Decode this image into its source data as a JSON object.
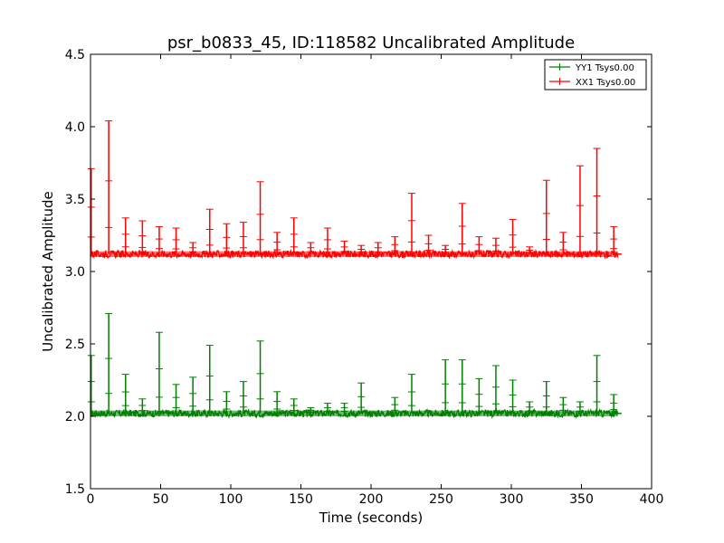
{
  "chart_data": {
    "type": "line",
    "title": "psr_b0833_45, ID:118582 Uncalibrated Amplitude",
    "xlabel": "Time (seconds)",
    "ylabel": "Uncalibrated Amplitude",
    "xlim": [
      0,
      400
    ],
    "ylim": [
      1.5,
      4.5
    ],
    "xticks": [
      0,
      50,
      100,
      150,
      200,
      250,
      300,
      350,
      400
    ],
    "xtick_labels": [
      "0",
      "50",
      "100",
      "150",
      "200",
      "250",
      "300",
      "350",
      "400"
    ],
    "yticks": [
      1.5,
      2.0,
      2.5,
      3.0,
      3.5,
      4.0,
      4.5
    ],
    "ytick_labels": [
      "1.5",
      "2.0",
      "2.5",
      "3.0",
      "3.5",
      "4.0",
      "4.5"
    ],
    "grid": false,
    "legend_position": "top-right",
    "series": [
      {
        "name": "YY1 Tsys0.00",
        "color": "#008000",
        "baseline": 2.02,
        "x_range": [
          0,
          376
        ],
        "spikes": [
          {
            "x": 0.5,
            "y": 2.42
          },
          {
            "x": 13,
            "y": 2.71
          },
          {
            "x": 25,
            "y": 2.29
          },
          {
            "x": 37,
            "y": 2.12
          },
          {
            "x": 49,
            "y": 2.58
          },
          {
            "x": 61,
            "y": 2.22
          },
          {
            "x": 73,
            "y": 2.27
          },
          {
            "x": 85,
            "y": 2.49
          },
          {
            "x": 97,
            "y": 2.17
          },
          {
            "x": 109,
            "y": 2.24
          },
          {
            "x": 121,
            "y": 2.52
          },
          {
            "x": 133,
            "y": 2.17
          },
          {
            "x": 145,
            "y": 2.12
          },
          {
            "x": 157,
            "y": 2.06
          },
          {
            "x": 169,
            "y": 2.09
          },
          {
            "x": 181,
            "y": 2.09
          },
          {
            "x": 193,
            "y": 2.23
          },
          {
            "x": 217,
            "y": 2.13
          },
          {
            "x": 229,
            "y": 2.29
          },
          {
            "x": 253,
            "y": 2.39
          },
          {
            "x": 265,
            "y": 2.39
          },
          {
            "x": 277,
            "y": 2.26
          },
          {
            "x": 289,
            "y": 2.35
          },
          {
            "x": 301,
            "y": 2.25
          },
          {
            "x": 313,
            "y": 2.1
          },
          {
            "x": 325,
            "y": 2.24
          },
          {
            "x": 337,
            "y": 2.13
          },
          {
            "x": 349,
            "y": 2.1
          },
          {
            "x": 361,
            "y": 2.42
          },
          {
            "x": 373,
            "y": 2.15
          }
        ]
      },
      {
        "name": "XX1 Tsys0.00",
        "color": "#ff0000",
        "baseline": 3.12,
        "x_range": [
          0,
          376
        ],
        "spikes": [
          {
            "x": 0.5,
            "y": 3.71
          },
          {
            "x": 13,
            "y": 4.04
          },
          {
            "x": 25,
            "y": 3.37
          },
          {
            "x": 37,
            "y": 3.35
          },
          {
            "x": 49,
            "y": 3.31
          },
          {
            "x": 61,
            "y": 3.3
          },
          {
            "x": 73,
            "y": 3.2
          },
          {
            "x": 85,
            "y": 3.43
          },
          {
            "x": 97,
            "y": 3.33
          },
          {
            "x": 109,
            "y": 3.34
          },
          {
            "x": 121,
            "y": 3.62
          },
          {
            "x": 133,
            "y": 3.27
          },
          {
            "x": 145,
            "y": 3.37
          },
          {
            "x": 157,
            "y": 3.2
          },
          {
            "x": 169,
            "y": 3.3
          },
          {
            "x": 181,
            "y": 3.21
          },
          {
            "x": 193,
            "y": 3.18
          },
          {
            "x": 205,
            "y": 3.2
          },
          {
            "x": 217,
            "y": 3.24
          },
          {
            "x": 229,
            "y": 3.54
          },
          {
            "x": 241,
            "y": 3.25
          },
          {
            "x": 253,
            "y": 3.18
          },
          {
            "x": 265,
            "y": 3.47
          },
          {
            "x": 277,
            "y": 3.24
          },
          {
            "x": 289,
            "y": 3.23
          },
          {
            "x": 301,
            "y": 3.36
          },
          {
            "x": 313,
            "y": 3.17
          },
          {
            "x": 325,
            "y": 3.63
          },
          {
            "x": 337,
            "y": 3.27
          },
          {
            "x": 349,
            "y": 3.73
          },
          {
            "x": 361,
            "y": 3.85
          },
          {
            "x": 373,
            "y": 3.31
          }
        ]
      }
    ]
  }
}
